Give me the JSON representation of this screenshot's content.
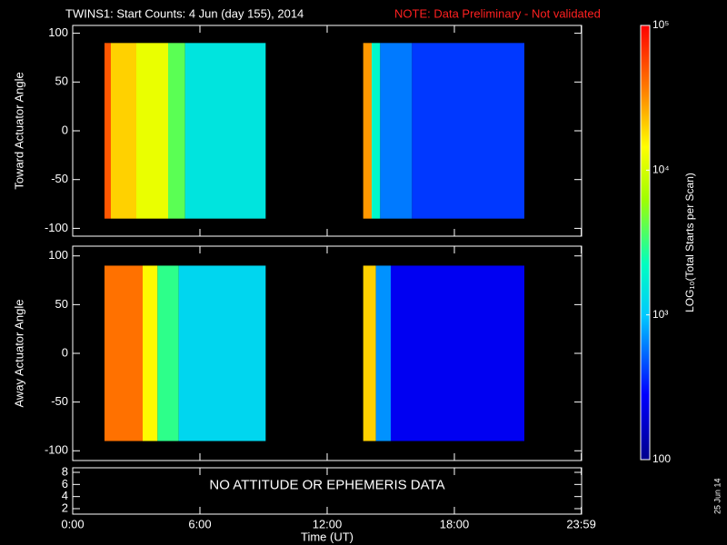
{
  "title": "TWINS1: Start Counts:  4 Jun (day 155), 2014",
  "note": "NOTE: Data Preliminary - Not validated",
  "xlabel": "Time (UT)",
  "date_stamp": "25 Jun 14",
  "xlim": [
    0,
    24
  ],
  "xticks": [
    {
      "value": 0,
      "label": "0:00"
    },
    {
      "value": 6,
      "label": "6:00"
    },
    {
      "value": 12,
      "label": "12:00"
    },
    {
      "value": 18,
      "label": "18:00"
    },
    {
      "value": 23.983,
      "label": "23:59"
    }
  ],
  "colorbar": {
    "label": "LOG₁₀(Total Starts per Scan)",
    "lim": [
      100,
      100000
    ],
    "log": true,
    "ticks": [
      {
        "value": 100000,
        "label": "10⁵"
      },
      {
        "value": 10000,
        "label": "10⁴"
      },
      {
        "value": 1000,
        "label": "10³"
      },
      100
    ],
    "colorscale": [
      [
        0,
        "#00008c"
      ],
      [
        0.15,
        "#0000ff"
      ],
      [
        0.33,
        "#00c8ff"
      ],
      [
        0.45,
        "#00ffc0"
      ],
      [
        0.6,
        "#a0ff00"
      ],
      [
        0.72,
        "#ffff00"
      ],
      [
        0.85,
        "#ff8000"
      ],
      [
        1,
        "#ff0000"
      ]
    ]
  },
  "chart_data": [
    {
      "type": "heatmap",
      "ylabel": "Toward Actuator Angle",
      "ylim": [
        -108,
        108
      ],
      "yticks": [
        -100,
        -50,
        0,
        50,
        100
      ],
      "y_range": [
        -90,
        90
      ],
      "x_edges": [
        1.5,
        1.8,
        3,
        4.5,
        5.3,
        9.1,
        13.7,
        14.1,
        14.5,
        16,
        21.3
      ],
      "values": [
        50000,
        20000,
        12000,
        4000,
        1500,
        null,
        30000,
        2000,
        600,
        400
      ]
    },
    {
      "type": "heatmap",
      "ylabel": "Away Actuator Angle",
      "ylim": [
        -110,
        110
      ],
      "yticks": [
        -100,
        -50,
        0,
        50,
        100
      ],
      "y_range": [
        -90,
        90
      ],
      "x_edges": [
        1.5,
        3.3,
        4,
        5,
        9.1,
        13.7,
        14.3,
        15,
        21.3
      ],
      "values": [
        40000,
        15000,
        3000,
        1200,
        null,
        20000,
        700,
        250
      ]
    },
    {
      "type": "text",
      "text": "NO ATTITUDE OR EPHEMERIS DATA",
      "ylim": [
        1.1,
        8.75
      ],
      "yticks": [
        2,
        4,
        6,
        8
      ]
    }
  ]
}
